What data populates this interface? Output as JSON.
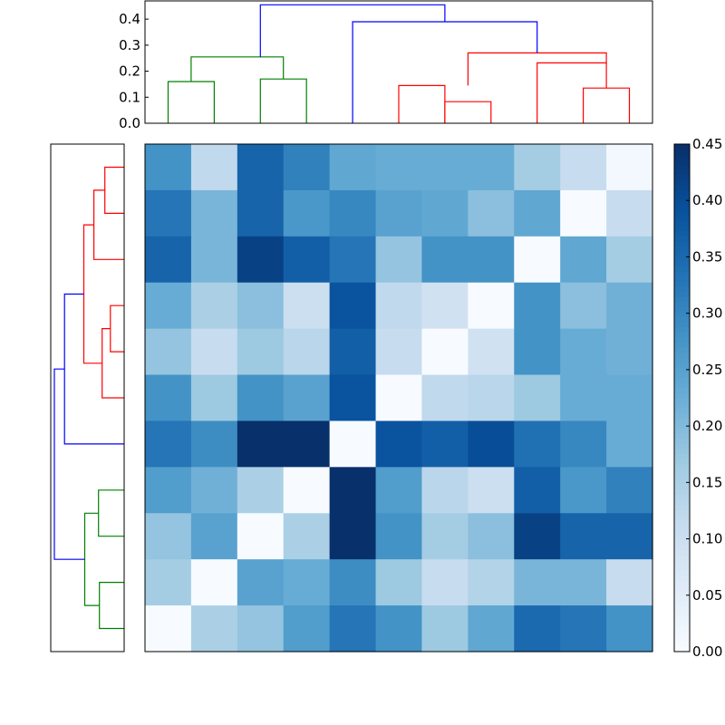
{
  "chart_data": [
    {
      "type": "heatmap",
      "colormap": "Blues",
      "rows": 11,
      "cols": 11,
      "values": [
        [
          0.28,
          0.12,
          0.36,
          0.31,
          0.24,
          0.23,
          0.23,
          0.23,
          0.16,
          0.11,
          0.01
        ],
        [
          0.33,
          0.21,
          0.36,
          0.27,
          0.3,
          0.25,
          0.24,
          0.19,
          0.24,
          0.0,
          0.11
        ],
        [
          0.36,
          0.21,
          0.42,
          0.37,
          0.33,
          0.18,
          0.28,
          0.28,
          0.0,
          0.24,
          0.16
        ],
        [
          0.23,
          0.15,
          0.19,
          0.1,
          0.39,
          0.12,
          0.09,
          0.0,
          0.28,
          0.19,
          0.22
        ],
        [
          0.18,
          0.11,
          0.17,
          0.13,
          0.37,
          0.11,
          0.0,
          0.09,
          0.28,
          0.23,
          0.22
        ],
        [
          0.28,
          0.17,
          0.28,
          0.25,
          0.39,
          0.0,
          0.12,
          0.13,
          0.17,
          0.23,
          0.23
        ],
        [
          0.33,
          0.29,
          0.45,
          0.45,
          0.0,
          0.39,
          0.37,
          0.4,
          0.34,
          0.3,
          0.23
        ],
        [
          0.26,
          0.22,
          0.15,
          0.0,
          0.45,
          0.26,
          0.13,
          0.1,
          0.37,
          0.27,
          0.31
        ],
        [
          0.18,
          0.25,
          0.0,
          0.15,
          0.45,
          0.28,
          0.16,
          0.19,
          0.42,
          0.36,
          0.36
        ],
        [
          0.16,
          0.0,
          0.25,
          0.23,
          0.29,
          0.17,
          0.11,
          0.14,
          0.21,
          0.21,
          0.11
        ],
        [
          0.0,
          0.15,
          0.18,
          0.26,
          0.33,
          0.28,
          0.17,
          0.24,
          0.35,
          0.33,
          0.28
        ]
      ],
      "colorbar": {
        "range": [
          0.0,
          0.45
        ],
        "ticks": [
          "0.00",
          "0.05",
          "0.10",
          "0.15",
          "0.20",
          "0.25",
          "0.30",
          "0.35",
          "0.40",
          "0.45"
        ]
      },
      "xticks": false,
      "yticks": false
    },
    {
      "type": "dendrogram",
      "orientation": "top",
      "ylim": [
        0.0,
        0.47
      ],
      "yticks": [
        "0.0",
        "0.1",
        "0.2",
        "0.3",
        "0.4"
      ],
      "leaves": 11,
      "links": [
        {
          "x": [
            0,
            0,
            1,
            1
          ],
          "y": [
            0,
            0.16,
            0.16,
            0
          ],
          "color": "#008000"
        },
        {
          "x": [
            2,
            2,
            3,
            3
          ],
          "y": [
            0,
            0.17,
            0.17,
            0
          ],
          "color": "#008000"
        },
        {
          "x": [
            0.5,
            0.5,
            2.5,
            2.5
          ],
          "y": [
            0.16,
            0.255,
            0.255,
            0.17
          ],
          "color": "#008000"
        },
        {
          "x": [
            5,
            5,
            6,
            6
          ],
          "y": [
            0,
            0.145,
            0.145,
            0
          ],
          "color": "#ff0000"
        },
        {
          "x": [
            6,
            6,
            7,
            7
          ],
          "y": [
            0,
            0.083,
            0.083,
            0
          ],
          "color": "#ff0000"
        },
        {
          "x": [
            9,
            9,
            10,
            10
          ],
          "y": [
            0,
            0.135,
            0.135,
            0
          ],
          "color": "#ff0000"
        },
        {
          "x": [
            8,
            8,
            9.5,
            9.5
          ],
          "y": [
            0,
            0.232,
            0.232,
            0.135
          ],
          "color": "#ff0000"
        },
        {
          "x": [
            6.5,
            6.5,
            9.5,
            9.5
          ],
          "y": [
            0.145,
            0.27,
            0.27,
            0.232
          ],
          "color": "#ff0000"
        },
        {
          "x": [
            4,
            4,
            8,
            8
          ],
          "y": [
            0,
            0.39,
            0.39,
            0.27
          ],
          "color": "#0000ff"
        },
        {
          "x": [
            2,
            2,
            6,
            6
          ],
          "y": [
            0.255,
            0.455,
            0.455,
            0.39
          ],
          "color": "#0000ff"
        }
      ]
    },
    {
      "type": "dendrogram",
      "orientation": "left",
      "leaves": 11,
      "links": [
        {
          "leaf": [
            0,
            0,
            1,
            1
          ],
          "d": [
            0,
            0.21,
            0.21,
            0
          ],
          "color": "#ff0000"
        },
        {
          "leaf": [
            0.5,
            0.5,
            2,
            2
          ],
          "d": [
            0.21,
            0.33,
            0.33,
            0
          ],
          "color": "#ff0000"
        },
        {
          "leaf": [
            3,
            3,
            4,
            4
          ],
          "d": [
            0,
            0.15,
            0.15,
            0
          ],
          "color": "#ff0000"
        },
        {
          "leaf": [
            3.5,
            3.5,
            5,
            5
          ],
          "d": [
            0.15,
            0.24,
            0.24,
            0
          ],
          "color": "#ff0000"
        },
        {
          "leaf": [
            1.25,
            1.25,
            4.25,
            4.25
          ],
          "d": [
            0.33,
            0.44,
            0.44,
            0.24
          ],
          "color": "#ff0000"
        },
        {
          "leaf": [
            2.75,
            2.75,
            6,
            6
          ],
          "d": [
            0.44,
            0.65,
            0.65,
            0
          ],
          "color": "#0000ff"
        },
        {
          "leaf": [
            7,
            7,
            8,
            8
          ],
          "d": [
            0,
            0.28,
            0.28,
            0
          ],
          "color": "#008000"
        },
        {
          "leaf": [
            9,
            9,
            10,
            10
          ],
          "d": [
            0,
            0.27,
            0.27,
            0
          ],
          "color": "#008000"
        },
        {
          "leaf": [
            7.5,
            7.5,
            9.5,
            9.5
          ],
          "d": [
            0.28,
            0.43,
            0.43,
            0.27
          ],
          "color": "#008000"
        },
        {
          "leaf": [
            4.375,
            4.375,
            8.5,
            8.5
          ],
          "d": [
            0.65,
            0.76,
            0.76,
            0.43
          ],
          "color": "#0000ff"
        }
      ]
    }
  ]
}
